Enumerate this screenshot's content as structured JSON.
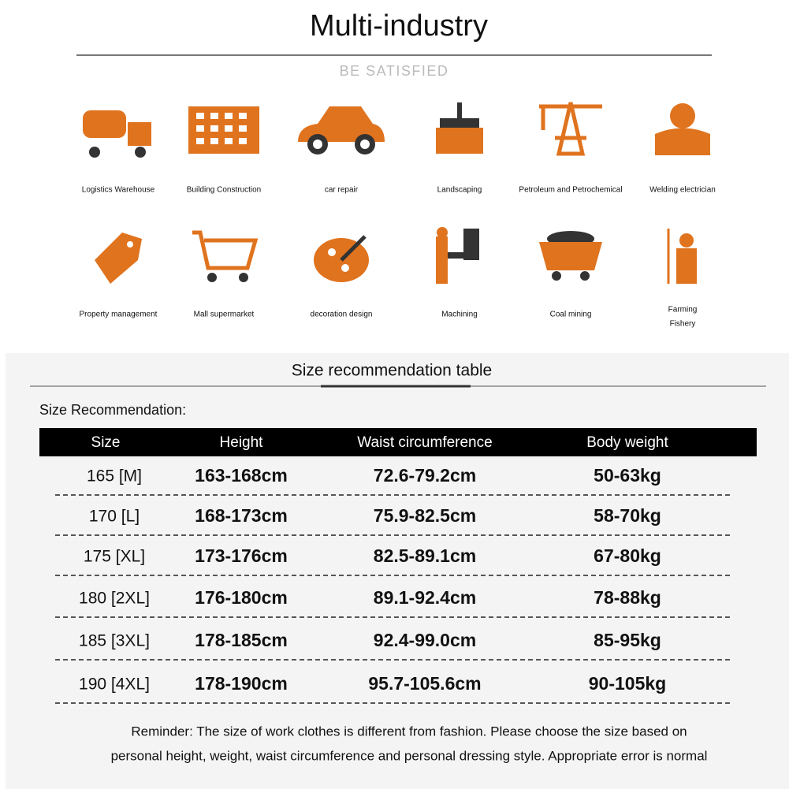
{
  "header": {
    "title": "Multi-industry",
    "subtitle": "BE SATISFIED"
  },
  "industries": [
    [
      "Logistics Warehouse"
    ],
    [
      "Building Construction"
    ],
    [
      "car repair"
    ],
    [
      "Landscaping"
    ],
    [
      "Petroleum and Petrochemical"
    ],
    [
      "Welding electrician"
    ],
    [
      "Property management"
    ],
    [
      "Mall supermarket"
    ],
    [
      "decoration design"
    ],
    [
      "Machining"
    ],
    [
      "Coal mining"
    ],
    [
      "Farming",
      "Fishery"
    ]
  ],
  "table": {
    "title": "Size recommendation table",
    "caption": "Size Recommendation:",
    "columns": [
      "Size",
      "Height",
      "Waist circumference",
      "Body weight"
    ],
    "rows": [
      [
        "165 [M]",
        "163-168cm",
        "72.6-79.2cm",
        "50-63kg"
      ],
      [
        "170  [L]",
        "168-173cm",
        "75.9-82.5cm",
        "58-70kg"
      ],
      [
        "175 [XL]",
        "173-176cm",
        "82.5-89.1cm",
        "67-80kg"
      ],
      [
        "180 [2XL]",
        "176-180cm",
        "89.1-92.4cm",
        "78-88kg"
      ],
      [
        "185 [3XL]",
        "178-185cm",
        "92.4-99.0cm",
        "85-95kg"
      ],
      [
        "190 [4XL]",
        "178-190cm",
        "95.7-105.6cm",
        "90-105kg"
      ]
    ],
    "reminder": [
      "Reminder: The size of work clothes is different from fashion. Please choose the size based on",
      "personal height, weight, waist circumference and personal dressing style. Appropriate error is normal"
    ]
  }
}
